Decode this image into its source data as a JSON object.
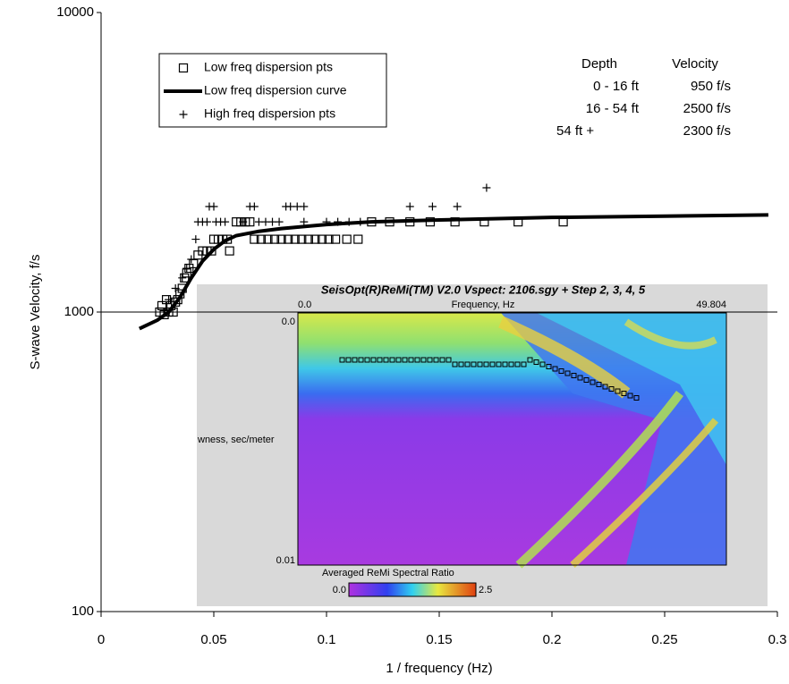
{
  "chart_data": {
    "type": "scatter",
    "x_label": "1 / frequency (Hz)",
    "y_label": "S-wave Velocity, f/s",
    "xlim": [
      0,
      0.3
    ],
    "xticks": [
      0,
      0.05,
      0.1,
      0.15,
      0.2,
      0.25,
      0.3
    ],
    "ylim": [
      100,
      10000
    ],
    "yticks": [
      100,
      1000,
      10000
    ],
    "log_y": true,
    "grid": true,
    "legend": "upper left",
    "series": [
      {
        "name": "Low freq dispersion pts",
        "marker": "square",
        "color": "#000000",
        "x": [
          0.026,
          0.027,
          0.028,
          0.029,
          0.03,
          0.031,
          0.032,
          0.033,
          0.034,
          0.035,
          0.036,
          0.037,
          0.038,
          0.039,
          0.041,
          0.043,
          0.045,
          0.047,
          0.049,
          0.05,
          0.052,
          0.054,
          0.056,
          0.057,
          0.06,
          0.062,
          0.064,
          0.066,
          0.068,
          0.071,
          0.074,
          0.077,
          0.08,
          0.083,
          0.086,
          0.089,
          0.092,
          0.095,
          0.098,
          0.101,
          0.104,
          0.109,
          0.114,
          0.12,
          0.128,
          0.137,
          0.146,
          0.157,
          0.17,
          0.185,
          0.205
        ],
        "values": [
          1000,
          1050,
          980,
          1100,
          1000,
          1050,
          1000,
          1080,
          1100,
          1150,
          1200,
          1300,
          1350,
          1400,
          1450,
          1550,
          1600,
          1600,
          1600,
          1750,
          1750,
          1750,
          1750,
          1600,
          2000,
          2000,
          2000,
          2000,
          1750,
          1750,
          1750,
          1750,
          1750,
          1750,
          1750,
          1750,
          1750,
          1750,
          1750,
          1750,
          1750,
          1750,
          1750,
          2000,
          2000,
          2000,
          2000,
          2000,
          2000,
          2000,
          2000
        ]
      },
      {
        "name": "Low freq dispersion curve",
        "marker": "line",
        "color": "#000000",
        "x": [
          0.017,
          0.025,
          0.03,
          0.035,
          0.04,
          0.045,
          0.05,
          0.055,
          0.06,
          0.07,
          0.08,
          0.1,
          0.12,
          0.15,
          0.2,
          0.25,
          0.296
        ],
        "values": [
          880,
          940,
          1000,
          1120,
          1300,
          1480,
          1620,
          1730,
          1800,
          1860,
          1900,
          1960,
          2000,
          2030,
          2070,
          2090,
          2110
        ]
      },
      {
        "name": "High freq dispersion pts",
        "marker": "plus",
        "color": "#000000",
        "x": [
          0.03,
          0.033,
          0.036,
          0.038,
          0.04,
          0.042,
          0.043,
          0.045,
          0.047,
          0.048,
          0.05,
          0.051,
          0.053,
          0.055,
          0.063,
          0.066,
          0.068,
          0.07,
          0.073,
          0.076,
          0.079,
          0.082,
          0.084,
          0.087,
          0.09,
          0.09,
          0.1,
          0.105,
          0.11,
          0.115,
          0.137,
          0.147,
          0.158,
          0.171
        ],
        "values": [
          1100,
          1200,
          1300,
          1400,
          1500,
          1750,
          2000,
          2000,
          2000,
          2250,
          2250,
          2000,
          2000,
          2000,
          2000,
          2250,
          2250,
          2000,
          2000,
          2000,
          2000,
          2250,
          2250,
          2250,
          2250,
          2000,
          2000,
          2000,
          2000,
          2000,
          2250,
          2250,
          2250,
          2600
        ]
      }
    ],
    "annotation_table": {
      "headers": [
        "Depth",
        "Velocity"
      ],
      "rows": [
        [
          "0 - 16 ft",
          "950 f/s"
        ],
        [
          "16 - 54 ft",
          "2500 f/s"
        ],
        [
          "54 ft +",
          "2300 f/s"
        ]
      ]
    },
    "inset": {
      "title": "SeisOpt(R)ReMi(TM) V2.0 Vspect: 2106.sgy + Step 2, 3, 4, 5",
      "x_start": "0.0",
      "x_label": "Frequency, Hz",
      "x_end": "49.804",
      "y_start": "0.0",
      "y_label": "wness, sec/meter",
      "y_end": "0.01",
      "colorbar_label": "Averaged ReMi Spectral Ratio",
      "colorbar_min": "0.0",
      "colorbar_max": "2.5"
    }
  }
}
